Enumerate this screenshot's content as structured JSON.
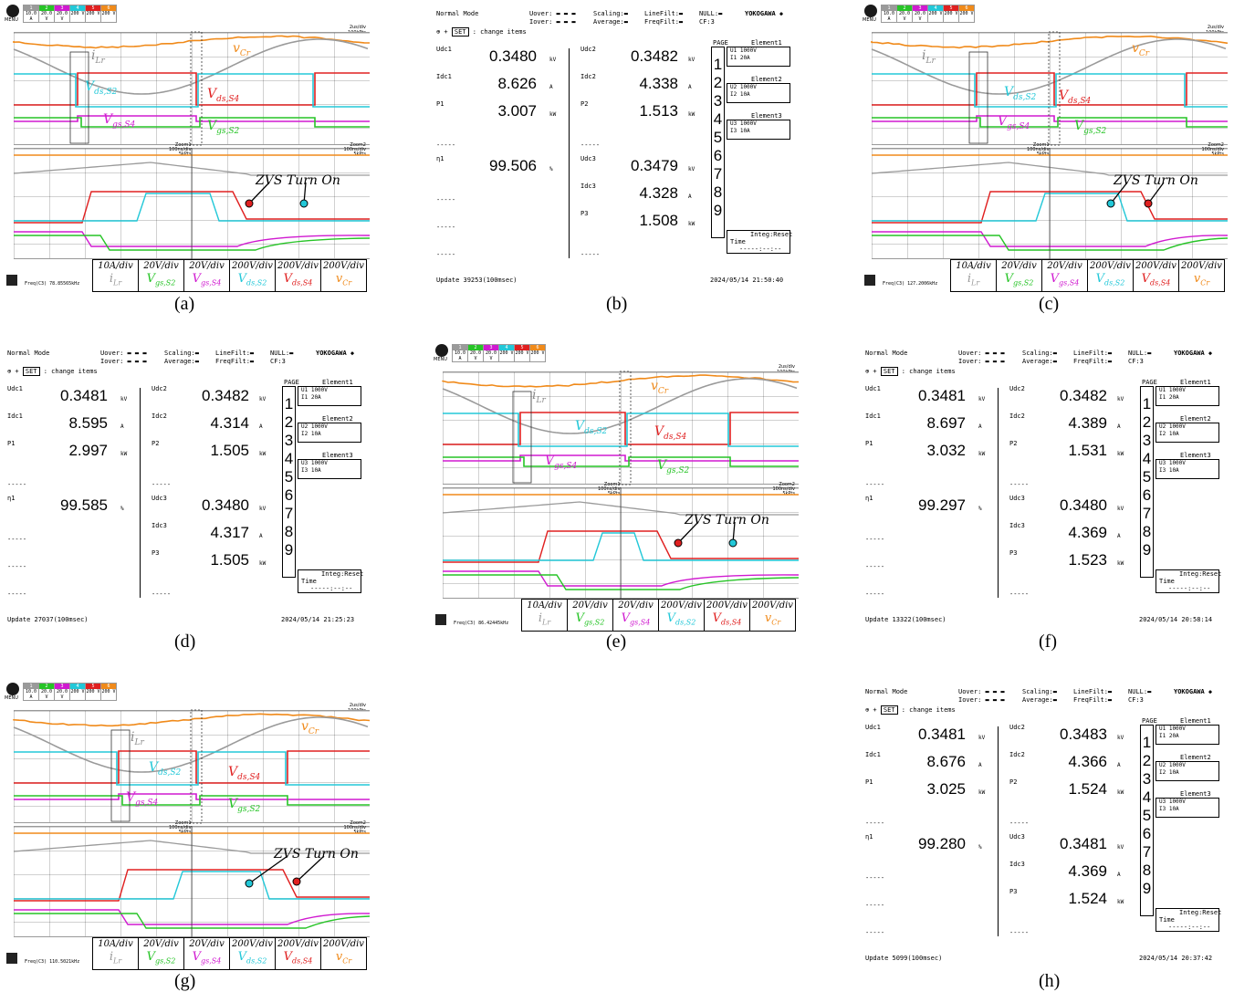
{
  "captions": [
    "(a)",
    "(b)",
    "(c)",
    "(d)",
    "(e)",
    "(f)",
    "(g)",
    "(h)"
  ],
  "scope": {
    "menu_label": "MENU",
    "channels": [
      {
        "n": "1",
        "v": "10.0 A",
        "color": "#9a9a9a"
      },
      {
        "n": "2",
        "v": "20.0 V",
        "color": "#27c427"
      },
      {
        "n": "3",
        "v": "20.0 V",
        "color": "#d01ad0"
      },
      {
        "n": "4",
        "v": "200 V",
        "color": "#23c8d8"
      },
      {
        "n": "5",
        "v": "200 V",
        "color": "#e02020"
      },
      {
        "n": "6",
        "v": "200 V",
        "color": "#f08a1a"
      }
    ],
    "time_div": "2us/div",
    "time_pts": "100kPts",
    "zoom1": [
      "Zoom1",
      "100ns/div",
      "5kPts"
    ],
    "zoom2": [
      "Zoom2",
      "100ns/div",
      "5kPts"
    ],
    "trig": "↯",
    "annotation": "ZVS Turn On",
    "scales": [
      {
        "div": "10A/div",
        "sig": "i",
        "sub": "Lr",
        "color": "#9a9a9a"
      },
      {
        "div": "20V/div",
        "sig": "V",
        "sub": "gs,S2",
        "color": "#27c427"
      },
      {
        "div": "20V/div",
        "sig": "V",
        "sub": "gs,S4",
        "color": "#d01ad0"
      },
      {
        "div": "200V/div",
        "sig": "V",
        "sub": "ds,S2",
        "color": "#23c8d8"
      },
      {
        "div": "200V/div",
        "sig": "V",
        "sub": "ds,S4",
        "color": "#e02020"
      },
      {
        "div": "200V/div",
        "sig": "v",
        "sub": "Cr",
        "color": "#f08a1a"
      }
    ],
    "freq_prefix": "Freq(C3)",
    "freqs": {
      "a": "78.85565kHz",
      "c": "127.2006kHz",
      "e": "86.42445kHz",
      "g": "110.5021kHz"
    }
  },
  "analyzer": {
    "mode": "Normal Mode",
    "uover": "Uover:",
    "iover": "Iover:",
    "scaling": "Scaling:",
    "average": "Average:",
    "linefilt": "LineFilt:",
    "freqfilt": "FreqFilt:",
    "null": "NULL:",
    "cf": "CF:3",
    "brand": "YOKOGAWA ◆",
    "set": "SET",
    "change": ": change items",
    "page": "PAGE",
    "pages": [
      "1",
      "2",
      "3",
      "4",
      "5",
      "6",
      "7",
      "8",
      "9"
    ],
    "el1": {
      "t": "Element1",
      "a": "U1 1000V",
      "b": "I1    20A"
    },
    "el2": {
      "t": "Element2",
      "a": "U2 1000V",
      "b": "I2    10A"
    },
    "el3": {
      "t": "Element3",
      "a": "U3 1000V",
      "b": "I3    10A"
    },
    "integ": "Integ:Reset",
    "time": "Time",
    "timeval": "-----:--:--",
    "labels": {
      "udc1": "Udc1",
      "idc1": "Idc1",
      "p1": "P1",
      "eta": "η1",
      "udc2": "Udc2",
      "idc2": "Idc2",
      "p2": "P2",
      "udc3": "Udc3",
      "idc3": "Idc3",
      "p3": "P3"
    },
    "units": {
      "kv": "kV",
      "a": "A",
      "kw": "kW",
      "pct": "%"
    },
    "dashes": "-----",
    "panels": {
      "b": {
        "udc1": "0.3480",
        "idc1": "8.626",
        "p1": "3.007",
        "eta": "99.506",
        "udc2": "0.3482",
        "idc2": "4.338",
        "p2": "1.513",
        "udc3": "0.3479",
        "idc3": "4.328",
        "p3": "1.508",
        "update": "Update 39253(100msec)",
        "date": "2024/05/14 21:50:40"
      },
      "d": {
        "udc1": "0.3481",
        "idc1": "8.595",
        "p1": "2.997",
        "eta": "99.585",
        "udc2": "0.3482",
        "idc2": "4.314",
        "p2": "1.505",
        "udc3": "0.3480",
        "idc3": "4.317",
        "p3": "1.505",
        "update": "Update 27037(100msec)",
        "date": "2024/05/14 21:25:23"
      },
      "f": {
        "udc1": "0.3481",
        "idc1": "8.697",
        "p1": "3.032",
        "eta": "99.297",
        "udc2": "0.3482",
        "idc2": "4.389",
        "p2": "1.531",
        "udc3": "0.3480",
        "idc3": "4.369",
        "p3": "1.523",
        "update": "Update 13322(100msec)",
        "date": "2024/05/14 20:58:14"
      },
      "h": {
        "udc1": "0.3481",
        "idc1": "8.676",
        "p1": "3.025",
        "eta": "99.280",
        "udc2": "0.3483",
        "idc2": "4.366",
        "p2": "1.524",
        "udc3": "0.3481",
        "idc3": "4.369",
        "p3": "1.524",
        "update": "Update  5099(100msec)",
        "date": "2024/05/14 20:37:42"
      }
    }
  }
}
